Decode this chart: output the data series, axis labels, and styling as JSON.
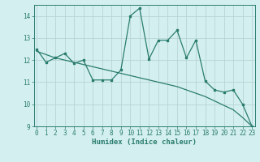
{
  "line1_x": [
    0,
    1,
    2,
    3,
    4,
    5,
    6,
    7,
    8,
    9,
    10,
    11,
    12,
    13,
    14,
    15,
    16,
    17,
    18,
    19,
    20,
    21,
    22,
    23
  ],
  "line1_y": [
    12.5,
    11.9,
    12.1,
    12.3,
    11.85,
    12.0,
    11.1,
    11.1,
    11.1,
    11.55,
    14.0,
    14.35,
    12.05,
    12.9,
    12.9,
    13.35,
    12.1,
    12.9,
    11.05,
    10.65,
    10.55,
    10.65,
    10.0,
    9.0
  ],
  "line2_x": [
    0,
    1,
    2,
    3,
    4,
    5,
    6,
    7,
    8,
    9,
    10,
    11,
    12,
    13,
    14,
    15,
    16,
    17,
    18,
    19,
    20,
    21,
    22,
    23
  ],
  "line2_y": [
    12.4,
    12.25,
    12.1,
    12.0,
    11.9,
    11.8,
    11.7,
    11.6,
    11.5,
    11.4,
    11.3,
    11.2,
    11.1,
    11.0,
    10.9,
    10.8,
    10.65,
    10.5,
    10.35,
    10.15,
    9.95,
    9.75,
    9.4,
    9.0
  ],
  "line_color": "#2a7d6e",
  "bg_color": "#d4efef",
  "grid_color": "#b8d4d4",
  "xlabel": "Humidex (Indice chaleur)",
  "ylim": [
    9,
    14.5
  ],
  "xlim": [
    -0.3,
    23.3
  ],
  "yticks": [
    9,
    10,
    11,
    12,
    13,
    14
  ],
  "xticks": [
    0,
    1,
    2,
    3,
    4,
    5,
    6,
    7,
    8,
    9,
    10,
    11,
    12,
    13,
    14,
    15,
    16,
    17,
    18,
    19,
    20,
    21,
    22,
    23
  ],
  "tick_fontsize": 5.5,
  "xlabel_fontsize": 6.5
}
